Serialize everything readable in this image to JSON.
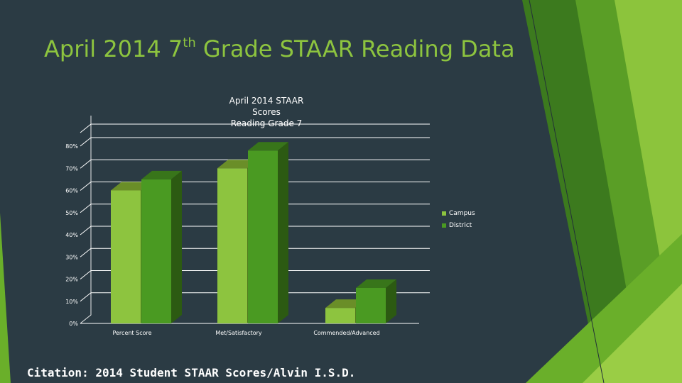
{
  "slide": {
    "title_prefix": "April 2014 7",
    "title_sup": "th",
    "title_suffix": " Grade STAAR Reading Data",
    "citation": "Citation: 2014 Student STAAR Scores/Alvin I.S.D."
  },
  "colors": {
    "background": "#2b3b44",
    "title_accent": "#8dc43f",
    "campus": "#8dc43f",
    "district": "#4a9a22"
  },
  "chart_data": {
    "type": "bar",
    "title_lines": [
      "April 2014 STAAR",
      "Scores",
      "Reading Grade 7"
    ],
    "categories": [
      "Percent Score",
      "Met/Satisfactory",
      "Commended/Advanced"
    ],
    "series": [
      {
        "name": "Campus",
        "values": [
          60,
          70,
          7
        ]
      },
      {
        "name": "District",
        "values": [
          65,
          78,
          16
        ]
      }
    ],
    "y_ticks": [
      "0%",
      "10%",
      "20%",
      "30%",
      "40%",
      "50%",
      "60%",
      "70%",
      "80%"
    ],
    "ylim": [
      0,
      80
    ],
    "grid": true,
    "bar_style": "3d",
    "legend_position": "right"
  }
}
